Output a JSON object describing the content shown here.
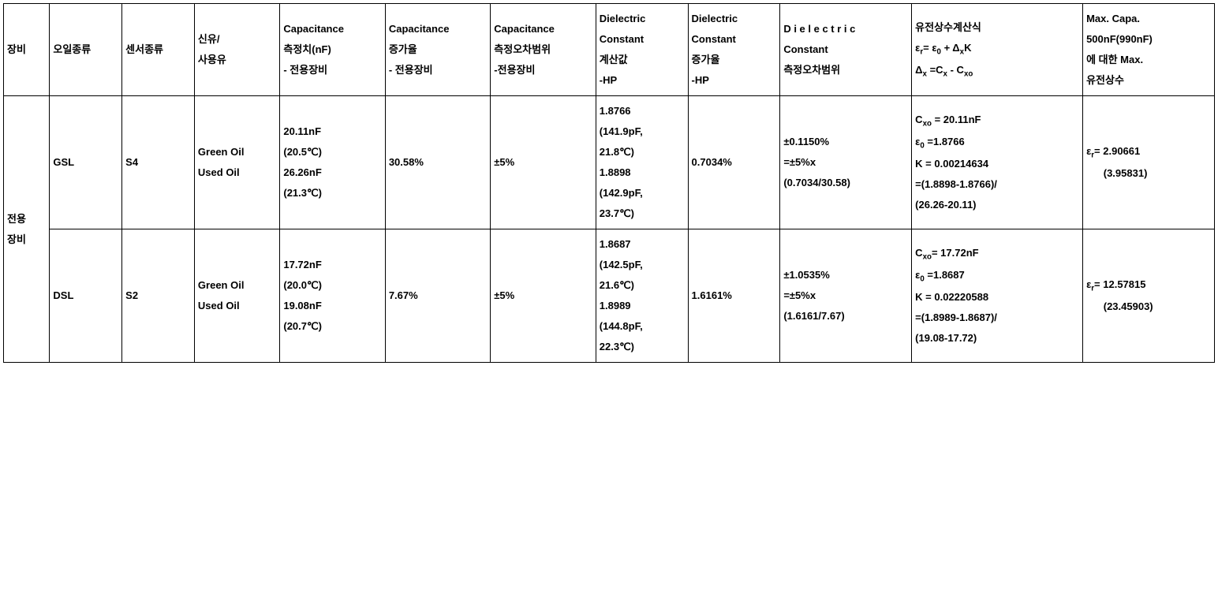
{
  "table": {
    "border_color": "#000000",
    "background_color": "#ffffff",
    "text_color": "#000000",
    "font_family": "Malgun Gothic",
    "font_size_pt": 10,
    "font_weight": "bold",
    "headers": {
      "h0": "장비",
      "h1": "오일종류",
      "h2": "센서종류",
      "h3_line1": "신유/",
      "h3_line2": "사용유",
      "h4_line1": "Capacitance",
      "h4_line2": "측정치(nF)",
      "h4_line3": "- 전용장비",
      "h5_line1": "Capacitance",
      "h5_line2": "증가율",
      "h5_line3": "- 전용장비",
      "h6_line1": "Capacitance",
      "h6_line2": "측정오차범위",
      "h6_line3": "-전용장비",
      "h7_line1": "Dielectric",
      "h7_line2": "Constant",
      "h7_line3": "계산값",
      "h7_line4": "-HP",
      "h8_line1": "Dielectric",
      "h8_line2": "Constant",
      "h8_line3": "증가율",
      "h8_line4": "-HP",
      "h9_prefix": "D i e l e c t r i c",
      "h9_line2": "Constant",
      "h9_line3": "측정오차범위",
      "h10_line1": "유전상수계산식",
      "h10_formula1_prefix": "ε",
      "h10_formula1_sub1": "r",
      "h10_formula1_mid": "= ε",
      "h10_formula1_sub2": "0",
      "h10_formula1_mid2": " + Δ",
      "h10_formula1_sub3": "x",
      "h10_formula1_end": "K",
      "h10_formula2_prefix": "Δ",
      "h10_formula2_sub1": "x",
      "h10_formula2_mid": " =C",
      "h10_formula2_sub2": "x",
      "h10_formula2_mid2": " - C",
      "h10_formula2_sub3": "xo",
      "h11_line1": "Max. Capa.",
      "h11_line2": "500nF(990nF)",
      "h11_line3": "에 대한 Max.",
      "h11_line4": "유전상수"
    },
    "rowgroup_label_line1": "전용",
    "rowgroup_label_line2": "장비",
    "rows": [
      {
        "oil_type": "GSL",
        "sensor_type": "S4",
        "oil_state_line1": "Green Oil",
        "oil_state_line2": "Used Oil",
        "cap_line1": "20.11nF",
        "cap_line2": "(20.5℃)",
        "cap_line3": "26.26nF",
        "cap_line4": "(21.3℃)",
        "cap_increase": "30.58%",
        "cap_error": "±5%",
        "dc_line1": "1.8766",
        "dc_line2": "(141.9pF,",
        "dc_line3": "21.8℃)",
        "dc_line4": "1.8898",
        "dc_line5": "(142.9pF,",
        "dc_line6": "23.7℃)",
        "dc_increase": "0.7034%",
        "dc_error_line1": "±0.1150%",
        "dc_error_line2": "=±5%x",
        "dc_error_line3": "(0.7034/30.58)",
        "formula_cxo_prefix": "C",
        "formula_cxo_sub": "xo",
        "formula_cxo_val": " = 20.11nF",
        "formula_e0_prefix": "ε",
        "formula_e0_sub": "0",
        "formula_e0_val": " =1.8766",
        "formula_k": "K = 0.00214634",
        "formula_k2": "=(1.8898-1.8766)/",
        "formula_k3": "(26.26-20.11)",
        "max_er_prefix": "ε",
        "max_er_sub": "r",
        "max_er_val": "= 2.90661",
        "max_er_paren": "(3.95831)"
      },
      {
        "oil_type": "DSL",
        "sensor_type": "S2",
        "oil_state_line1": "Green Oil",
        "oil_state_line2": "Used Oil",
        "cap_line1": "17.72nF",
        "cap_line2": "(20.0℃)",
        "cap_line3": "19.08nF",
        "cap_line4": "(20.7℃)",
        "cap_increase": "7.67%",
        "cap_error": "±5%",
        "dc_line1": "1.8687",
        "dc_line2": "(142.5pF,",
        "dc_line3": "21.6℃)",
        "dc_line4": "1.8989",
        "dc_line5": "(144.8pF,",
        "dc_line6": "22.3℃)",
        "dc_increase": "1.6161%",
        "dc_error_line1": "±1.0535%",
        "dc_error_line2": "=±5%x",
        "dc_error_line3": "(1.6161/7.67)",
        "formula_cxo_prefix": "C",
        "formula_cxo_sub": "xo",
        "formula_cxo_val": "= 17.72nF",
        "formula_e0_prefix": "ε",
        "formula_e0_sub": "0",
        "formula_e0_val": " =1.8687",
        "formula_k": "K = 0.02220588",
        "formula_k2": "=(1.8989-1.8687)/",
        "formula_k3": "(19.08-17.72)",
        "max_er_prefix": "ε",
        "max_er_sub": "r",
        "max_er_val": "= 12.57815",
        "max_er_paren": "(23.45903)"
      }
    ]
  }
}
